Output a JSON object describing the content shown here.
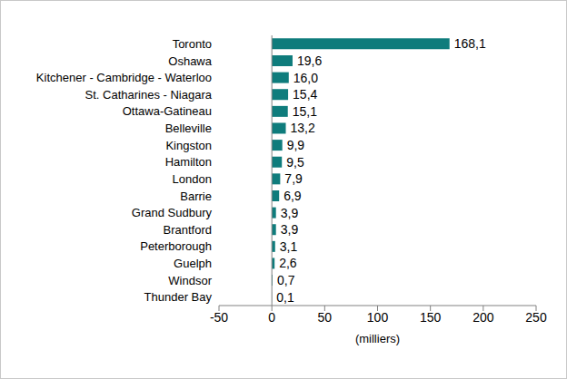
{
  "chart_data": {
    "type": "bar",
    "orientation": "horizontal",
    "categories": [
      "Toronto",
      "Oshawa",
      "Kitchener - Cambridge - Waterloo",
      "St. Catharines - Niagara",
      "Ottawa-Gatineau",
      "Belleville",
      "Kingston",
      "Hamilton",
      "London",
      "Barrie",
      "Grand Sudbury",
      "Brantford",
      "Peterborough",
      "Guelph",
      "Windsor",
      "Thunder Bay"
    ],
    "values": [
      168.1,
      19.6,
      16.0,
      15.4,
      15.1,
      13.2,
      9.9,
      9.5,
      7.9,
      6.9,
      3.9,
      3.9,
      3.1,
      2.6,
      0.7,
      0.1
    ],
    "value_labels": [
      "168,1",
      "19,6",
      "16,0",
      "15,4",
      "15,1",
      "13,2",
      "9,9",
      "9,5",
      "7,9",
      "6,9",
      "3,9",
      "3,9",
      "3,1",
      "2,6",
      "0,7",
      "0,1"
    ],
    "data_labels": true,
    "color": "#0f7c7c",
    "x_label": "(milliers)",
    "xlim": [
      -50,
      250
    ],
    "xticks": [
      -50,
      0,
      50,
      100,
      150,
      200,
      250
    ],
    "grid": false
  }
}
